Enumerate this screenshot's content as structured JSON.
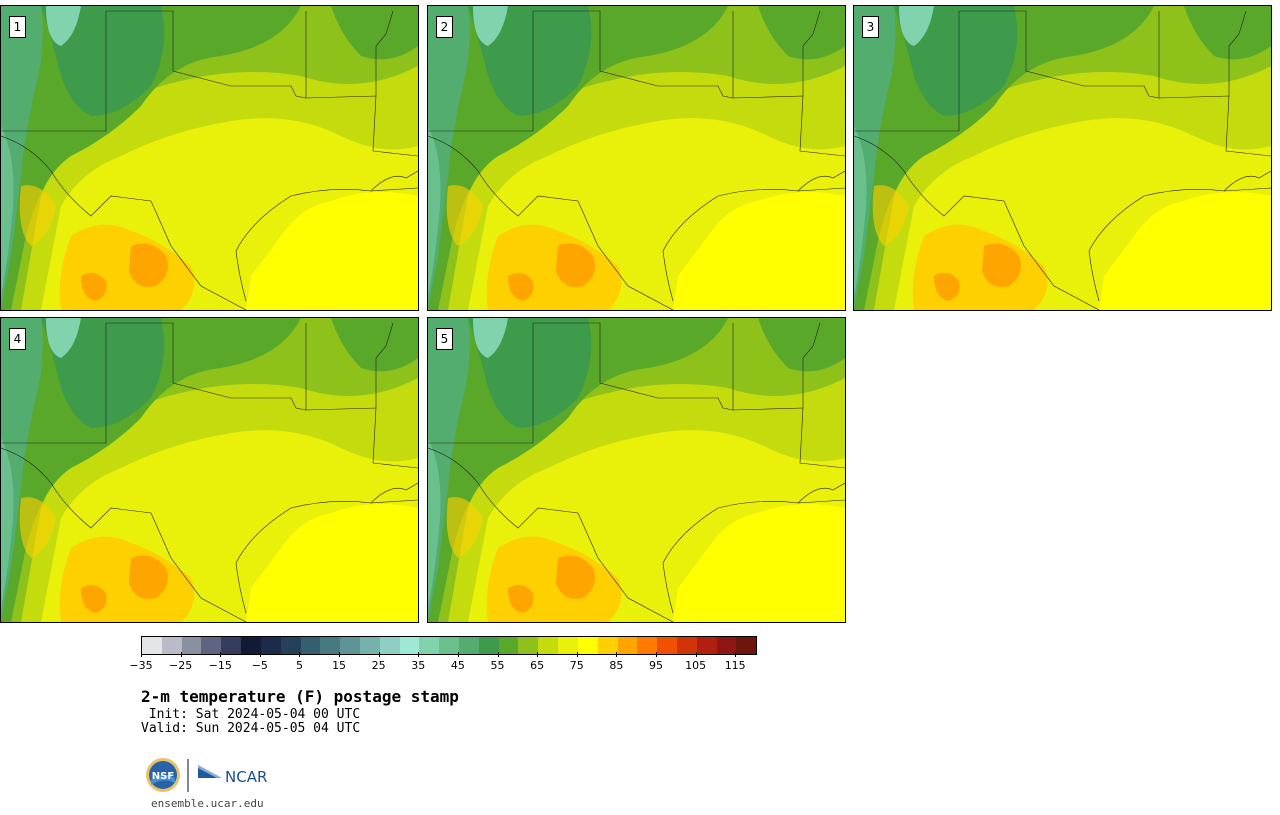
{
  "panels": [
    {
      "label": "1"
    },
    {
      "label": "2"
    },
    {
      "label": "3"
    },
    {
      "label": "4"
    },
    {
      "label": "5"
    }
  ],
  "colorbar": {
    "colors": [
      "#e3e5e8",
      "#b9bcc7",
      "#8b90a0",
      "#5f6580",
      "#353c5e",
      "#131a36",
      "#1b2b49",
      "#25405a",
      "#345f6f",
      "#47797f",
      "#5e9495",
      "#77b1ae",
      "#8fcfc3",
      "#9fe8d6",
      "#81d3ad",
      "#6ac08d",
      "#53ad6f",
      "#3f9b4c",
      "#59a82a",
      "#8ec21a",
      "#c4dc0d",
      "#e9f00a",
      "#ffff00",
      "#ffd000",
      "#ffa500",
      "#ff7a00",
      "#f05000",
      "#d23308",
      "#b01f10",
      "#8f1612",
      "#6e150c"
    ],
    "ticks": [
      "−35",
      "−25",
      "−15",
      "−5",
      "5",
      "15",
      "25",
      "35",
      "45",
      "55",
      "65",
      "75",
      "85",
      "95",
      "105",
      "115"
    ]
  },
  "title": "2-m temperature (F) postage stamp",
  "init_line": " Init: Sat 2024-05-04 00 UTC",
  "valid_line": "Valid: Sun 2024-05-05 04 UTC",
  "logo": {
    "nsf": "NSF",
    "ncar": "NCAR"
  },
  "website": "ensemble.ucar.edu"
}
